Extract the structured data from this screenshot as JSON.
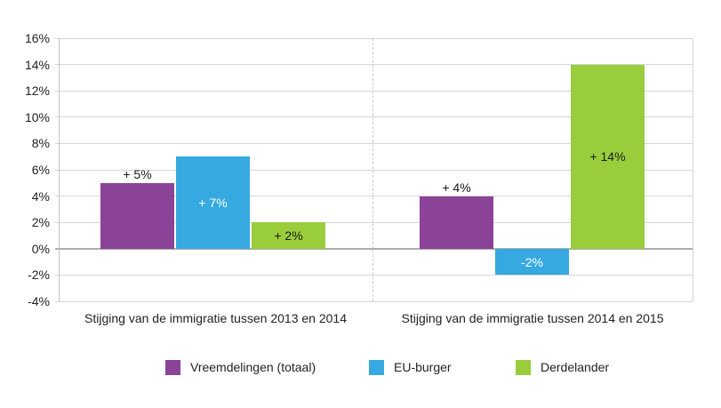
{
  "chart_data": {
    "type": "bar",
    "title": "",
    "xlabel": "",
    "ylabel": "",
    "grid": true,
    "legend_position": "bottom",
    "y_axis": {
      "min": -4,
      "max": 16,
      "step": 2,
      "tick_labels": [
        "16%",
        "14%",
        "12%",
        "10%",
        "8%",
        "6%",
        "4%",
        "2%",
        "0%",
        "-2%",
        "-4%"
      ]
    },
    "series": [
      {
        "name": "Vreemdelingen (totaal)",
        "color": "#8B4397"
      },
      {
        "name": "EU-burger",
        "color": "#36A9E1"
      },
      {
        "name": "Derdelander",
        "color": "#9ACD3C"
      }
    ],
    "groups": [
      {
        "label": "Stijging van de immigratie tussen 2013 en 2014",
        "bars": [
          {
            "series": "Vreemdelingen (totaal)",
            "value": 5,
            "label": "+ 5%",
            "label_position": "above",
            "label_color": "#1A1A1A"
          },
          {
            "series": "EU-burger",
            "value": 7,
            "label": "+ 7%",
            "label_position": "inside",
            "label_color": "#FFFFFF"
          },
          {
            "series": "Derdelander",
            "value": 2,
            "label": "+ 2%",
            "label_position": "inside",
            "label_color": "#1A1A1A"
          }
        ]
      },
      {
        "label": "Stijging van de immigratie tussen 2014 en 2015",
        "bars": [
          {
            "series": "Vreemdelingen (totaal)",
            "value": 4,
            "label": "+ 4%",
            "label_position": "above",
            "label_color": "#1A1A1A"
          },
          {
            "series": "EU-burger",
            "value": -2,
            "label": "-2%",
            "label_position": "inside",
            "label_color": "#FFFFFF"
          },
          {
            "series": "Derdelander",
            "value": 14,
            "label": "+ 14%",
            "label_position": "inside",
            "label_color": "#1A1A1A"
          }
        ]
      }
    ],
    "style": {
      "grid_color": "#D6D6D6",
      "zero_line_color": "#ADADAD",
      "axis_color": "#C2C2C2",
      "divider_color": "#C9C9C9",
      "text_color": "#222222",
      "background": "#FFFFFF"
    }
  }
}
